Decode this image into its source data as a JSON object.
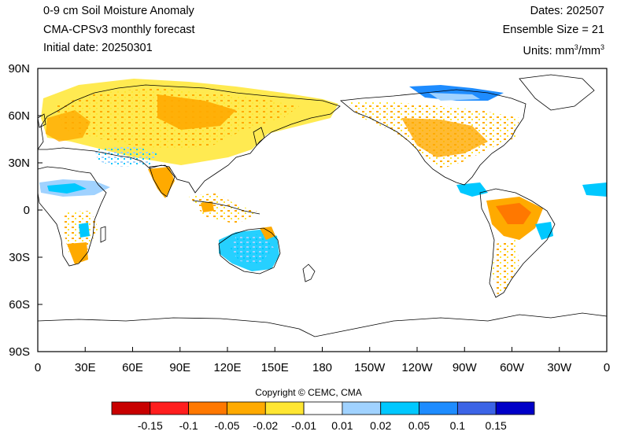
{
  "header": {
    "left_title": "0-9 cm Soil Moisture Anomaly",
    "left_subtitle": "CMA-CPSv3 monthly forecast",
    "left_init": "Initial date: 20250301",
    "right_dates": "Dates: 202507",
    "right_ensemble": "Ensemble Size = 21",
    "right_units_prefix": "Units: mm",
    "right_units_exp1": "3",
    "right_units_mid": "/mm",
    "right_units_exp2": "3"
  },
  "map": {
    "lat_labels": [
      "90N",
      "60N",
      "30N",
      "0",
      "30S",
      "60S",
      "90S"
    ],
    "lon_labels": [
      "0",
      "30E",
      "60E",
      "90E",
      "120E",
      "150E",
      "180",
      "150W",
      "120W",
      "90W",
      "60W",
      "30W",
      "0"
    ],
    "projection": "cylindrical-equidistant",
    "center_lon": 180
  },
  "copyright": "Copyright © CEMC, CMA",
  "colorbar": {
    "colors": [
      "#c80000",
      "#ff1e1e",
      "#ff7800",
      "#ffaa00",
      "#ffe632",
      "#ffffff",
      "#a0d2ff",
      "#00c8ff",
      "#1e8cff",
      "#3c64e6",
      "#0000c8"
    ],
    "tick_labels": [
      "-0.15",
      "-0.1",
      "-0.05",
      "-0.02",
      "-0.01",
      "0.01",
      "0.02",
      "0.05",
      "0.1",
      "0.15"
    ]
  }
}
